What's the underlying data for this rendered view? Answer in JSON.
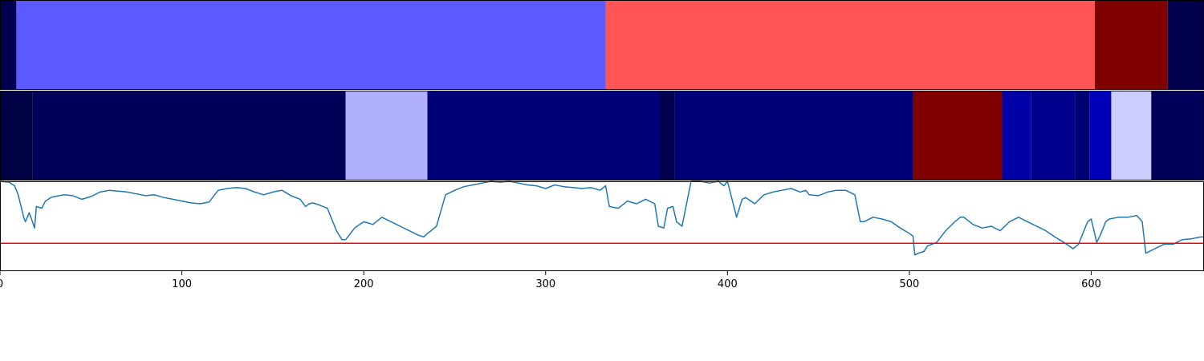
{
  "chart_data": [
    {
      "type": "heatmap",
      "panel": "top-segment-strip",
      "xlim": [
        0,
        662
      ],
      "segments": [
        {
          "start": 0,
          "end": 9,
          "color": "#00004f"
        },
        {
          "start": 9,
          "end": 333,
          "color": "#5a5aff"
        },
        {
          "start": 333,
          "end": 602,
          "color": "#ff5555"
        },
        {
          "start": 602,
          "end": 642,
          "color": "#800000"
        },
        {
          "start": 642,
          "end": 662,
          "color": "#00004c"
        }
      ]
    },
    {
      "type": "heatmap",
      "panel": "middle-segment-strip",
      "xlim": [
        0,
        662
      ],
      "segments": [
        {
          "start": 0,
          "end": 18,
          "color": "#000045"
        },
        {
          "start": 18,
          "end": 190,
          "color": "#000058"
        },
        {
          "start": 190,
          "end": 235,
          "color": "#b0b0ff"
        },
        {
          "start": 235,
          "end": 363,
          "color": "#000078"
        },
        {
          "start": 363,
          "end": 371,
          "color": "#00004c"
        },
        {
          "start": 371,
          "end": 502,
          "color": "#000078"
        },
        {
          "start": 502,
          "end": 551,
          "color": "#800000"
        },
        {
          "start": 551,
          "end": 567,
          "color": "#0000a8"
        },
        {
          "start": 567,
          "end": 591,
          "color": "#00008c"
        },
        {
          "start": 591,
          "end": 599,
          "color": "#000070"
        },
        {
          "start": 599,
          "end": 611,
          "color": "#0000b8"
        },
        {
          "start": 611,
          "end": 633,
          "color": "#ccccff"
        },
        {
          "start": 633,
          "end": 662,
          "color": "#000058"
        }
      ]
    },
    {
      "type": "line",
      "panel": "signal-line",
      "xlim": [
        0,
        662
      ],
      "ylim": [
        0,
        1
      ],
      "line_color": "#1f77b4",
      "threshold": 0.31,
      "threshold_color": "#ff0000",
      "x_ticks": [
        "0",
        "100",
        "200",
        "300",
        "400",
        "500",
        "600"
      ],
      "tick_values": [
        0,
        100,
        200,
        300,
        400,
        500,
        600
      ],
      "series": [
        {
          "x": [
            0,
            5,
            8,
            10,
            13,
            14,
            16,
            17,
            19,
            20,
            23,
            25,
            28,
            30,
            35,
            40,
            45,
            50,
            55,
            60,
            65,
            70,
            75,
            80,
            85,
            90,
            95,
            100,
            105,
            110,
            115,
            118,
            120,
            125,
            130,
            135,
            140,
            145,
            150,
            155,
            160,
            165,
            168,
            170,
            172,
            175,
            180,
            182,
            185,
            188,
            190,
            192,
            195,
            200,
            205,
            210,
            215,
            220,
            225,
            230,
            233,
            235,
            237,
            240,
            245,
            250,
            255,
            260,
            265,
            270,
            275,
            280,
            285,
            290,
            295,
            300,
            305,
            310,
            315,
            320,
            325,
            330,
            333,
            335,
            340,
            345,
            350,
            355,
            360,
            362,
            365,
            367,
            370,
            372,
            375,
            380,
            385,
            390,
            395,
            398,
            400,
            405,
            408,
            410,
            415,
            420,
            425,
            430,
            435,
            440,
            443,
            445,
            450,
            455,
            460,
            465,
            470,
            473,
            475,
            480,
            485,
            490,
            495,
            500,
            502,
            503,
            505,
            508,
            510,
            515,
            520,
            525,
            528,
            530,
            535,
            540,
            545,
            550,
            555,
            560,
            565,
            570,
            575,
            580,
            585,
            590,
            593,
            595,
            598,
            600,
            603,
            605,
            608,
            610,
            615,
            620,
            625,
            628,
            630,
            635,
            640,
            645,
            650,
            655,
            660,
            662
          ],
          "y": [
            1.0,
            0.99,
            0.95,
            0.85,
            0.6,
            0.55,
            0.65,
            0.6,
            0.48,
            0.72,
            0.7,
            0.78,
            0.82,
            0.83,
            0.85,
            0.84,
            0.8,
            0.83,
            0.88,
            0.9,
            0.89,
            0.88,
            0.86,
            0.84,
            0.85,
            0.82,
            0.8,
            0.78,
            0.76,
            0.75,
            0.77,
            0.85,
            0.9,
            0.92,
            0.93,
            0.92,
            0.88,
            0.85,
            0.88,
            0.9,
            0.84,
            0.8,
            0.72,
            0.75,
            0.76,
            0.74,
            0.7,
            0.6,
            0.45,
            0.35,
            0.35,
            0.4,
            0.48,
            0.55,
            0.52,
            0.6,
            0.55,
            0.5,
            0.45,
            0.4,
            0.38,
            0.42,
            0.45,
            0.5,
            0.85,
            0.9,
            0.94,
            0.96,
            0.98,
            1.0,
            0.99,
            1.0,
            0.98,
            0.96,
            0.95,
            0.92,
            0.96,
            0.94,
            0.93,
            0.92,
            0.93,
            0.9,
            0.95,
            0.72,
            0.7,
            0.78,
            0.75,
            0.8,
            0.75,
            0.5,
            0.48,
            0.7,
            0.72,
            0.55,
            0.5,
            1.0,
            1.0,
            0.98,
            1.0,
            0.95,
            1.0,
            0.6,
            0.8,
            0.82,
            0.75,
            0.85,
            0.88,
            0.9,
            0.92,
            0.88,
            0.9,
            0.85,
            0.84,
            0.88,
            0.9,
            0.9,
            0.85,
            0.55,
            0.55,
            0.6,
            0.58,
            0.55,
            0.48,
            0.42,
            0.39,
            0.18,
            0.2,
            0.22,
            0.28,
            0.32,
            0.45,
            0.55,
            0.6,
            0.6,
            0.52,
            0.48,
            0.5,
            0.45,
            0.55,
            0.6,
            0.55,
            0.5,
            0.45,
            0.38,
            0.32,
            0.25,
            0.3,
            0.4,
            0.55,
            0.58,
            0.32,
            0.4,
            0.55,
            0.58,
            0.6,
            0.6,
            0.62,
            0.55,
            0.2,
            0.25,
            0.3,
            0.3,
            0.35,
            0.36,
            0.38,
            0.38
          ]
        }
      ]
    }
  ]
}
